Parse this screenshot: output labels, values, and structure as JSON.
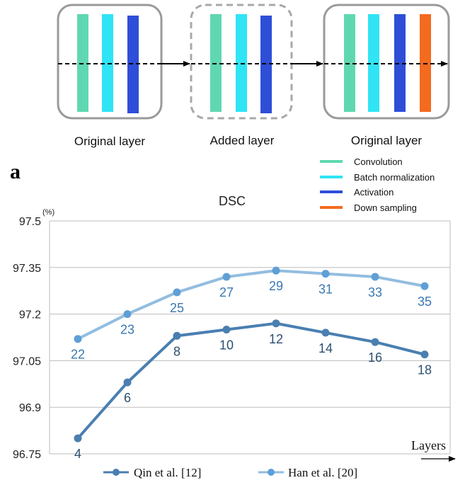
{
  "diagram": {
    "blocks": [
      {
        "label": "Original layer",
        "style": "solid",
        "layers": [
          "convolution",
          "batch_normalization",
          "activation"
        ]
      },
      {
        "label": "Added layer",
        "style": "dashed",
        "layers": [
          "convolution",
          "batch_normalization",
          "activation"
        ]
      },
      {
        "label": "Original layer",
        "style": "solid",
        "layers": [
          "convolution",
          "batch_normalization",
          "activation",
          "down_sampling"
        ]
      }
    ],
    "panel_label": "a",
    "legend": [
      {
        "key": "convolution",
        "label": "Convolution",
        "color": "#5fd8b2"
      },
      {
        "key": "batch_normalization",
        "label": "Batch normalization",
        "color": "#2fe4f5"
      },
      {
        "key": "activation",
        "label": "Activation",
        "color": "#2e4ed8"
      },
      {
        "key": "down_sampling",
        "label": "Down sampling",
        "color": "#f46a1f"
      }
    ]
  },
  "chart_data": {
    "type": "line",
    "title": "DSC",
    "ylabel": "(%)",
    "xlabel": "Layers",
    "ylim": [
      96.75,
      97.5
    ],
    "yticks": [
      "96.75",
      "96.9",
      "97.05",
      "97.2",
      "97.35",
      "97.5"
    ],
    "grid": true,
    "legend_position": "bottom",
    "series": [
      {
        "name": "Qin et al. [12]",
        "color": "#4a7fb1",
        "labels": [
          "4",
          "6",
          "8",
          "10",
          "12",
          "14",
          "16",
          "18"
        ],
        "values": [
          96.8,
          96.98,
          97.13,
          97.15,
          97.17,
          97.14,
          97.11,
          97.07
        ]
      },
      {
        "name": "Han et al. [20]",
        "color": "#93bde0",
        "labels": [
          "22",
          "23",
          "25",
          "27",
          "29",
          "31",
          "33",
          "35"
        ],
        "values": [
          97.12,
          97.2,
          97.27,
          97.32,
          97.34,
          97.33,
          97.32,
          97.29
        ]
      }
    ]
  }
}
